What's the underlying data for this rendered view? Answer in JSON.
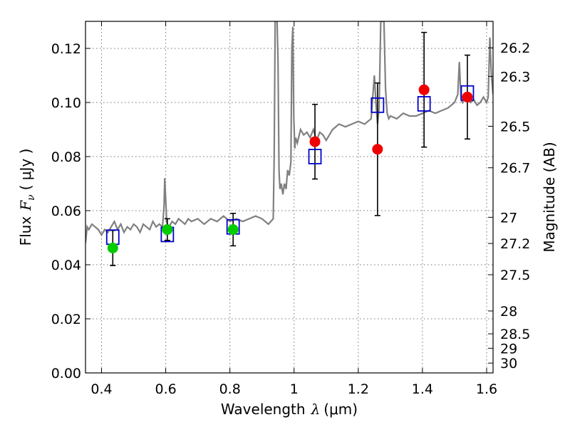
{
  "chart_data": {
    "type": "scatter",
    "xlabel_prefix": "Wavelength",
    "xlabel_symbol": "λ",
    "xlabel_unit": "(μm)",
    "ylabel_prefix": "Flux",
    "ylabel_symbol": "F",
    "ylabel_subscript": "ν",
    "ylabel_unit": "( μJy )",
    "y2label": "Magnitude (AB)",
    "xlim": [
      0.35,
      1.62
    ],
    "ylim": [
      0.0,
      0.13
    ],
    "x_ticks": [
      0.4,
      0.6,
      0.8,
      1.0,
      1.2,
      1.4,
      1.6
    ],
    "x_tick_labels": [
      "0.4",
      "0.6",
      "0.8",
      "1",
      "1.2",
      "1.4",
      "1.6"
    ],
    "y_ticks": [
      0.0,
      0.02,
      0.04,
      0.06,
      0.08,
      0.1,
      0.12
    ],
    "y_tick_labels": [
      "0.00",
      "0.02",
      "0.04",
      "0.06",
      "0.08",
      "0.10",
      "0.12"
    ],
    "y2_ticks": [
      {
        "label": "26.2",
        "mag": 26.2
      },
      {
        "label": "26.3",
        "mag": 26.3
      },
      {
        "label": "26.5",
        "mag": 26.5
      },
      {
        "label": "26.7",
        "mag": 26.7
      },
      {
        "label": "27",
        "mag": 27.0
      },
      {
        "label": "27.2",
        "mag": 27.2
      },
      {
        "label": "27.5",
        "mag": 27.5
      },
      {
        "label": "28",
        "mag": 28.0
      },
      {
        "label": "28.5",
        "mag": 28.5
      },
      {
        "label": "29",
        "mag": 29.0
      },
      {
        "label": "30",
        "mag": 30.0
      }
    ],
    "grid": true,
    "colors": {
      "sed": "#808080",
      "model": "#0000cc",
      "obs_optical": "#00cc00",
      "obs_nir": "#ee0000",
      "errorbar": "#000000"
    },
    "sed_model": {
      "x": [
        0.35,
        0.355,
        0.36,
        0.37,
        0.38,
        0.39,
        0.4,
        0.41,
        0.42,
        0.43,
        0.44,
        0.45,
        0.46,
        0.47,
        0.48,
        0.49,
        0.5,
        0.51,
        0.52,
        0.53,
        0.54,
        0.55,
        0.56,
        0.57,
        0.58,
        0.59,
        0.595,
        0.597,
        0.6,
        0.603,
        0.605,
        0.61,
        0.62,
        0.63,
        0.64,
        0.65,
        0.66,
        0.67,
        0.68,
        0.7,
        0.72,
        0.74,
        0.76,
        0.78,
        0.8,
        0.82,
        0.84,
        0.86,
        0.88,
        0.9,
        0.92,
        0.935,
        0.938,
        0.941,
        0.944,
        0.947,
        0.95,
        0.953,
        0.956,
        0.96,
        0.965,
        0.97,
        0.975,
        0.98,
        0.985,
        0.99,
        0.993,
        0.996,
        0.999,
        1.002,
        1.005,
        1.01,
        1.02,
        1.03,
        1.04,
        1.05,
        1.06,
        1.07,
        1.08,
        1.09,
        1.1,
        1.12,
        1.14,
        1.16,
        1.18,
        1.2,
        1.22,
        1.24,
        1.25,
        1.255,
        1.26,
        1.265,
        1.27,
        1.275,
        1.28,
        1.285,
        1.29,
        1.295,
        1.3,
        1.32,
        1.34,
        1.36,
        1.38,
        1.4,
        1.42,
        1.44,
        1.46,
        1.48,
        1.5,
        1.51,
        1.515,
        1.52,
        1.525,
        1.53,
        1.54,
        1.55,
        1.56,
        1.57,
        1.58,
        1.59,
        1.6,
        1.605,
        1.61,
        1.615,
        1.62
      ],
      "y": [
        0.048,
        0.054,
        0.053,
        0.055,
        0.054,
        0.053,
        0.051,
        0.053,
        0.052,
        0.054,
        0.056,
        0.053,
        0.055,
        0.052,
        0.054,
        0.053,
        0.055,
        0.054,
        0.052,
        0.055,
        0.054,
        0.053,
        0.056,
        0.054,
        0.055,
        0.054,
        0.062,
        0.072,
        0.064,
        0.056,
        0.055,
        0.054,
        0.056,
        0.055,
        0.057,
        0.056,
        0.055,
        0.057,
        0.056,
        0.057,
        0.055,
        0.057,
        0.056,
        0.058,
        0.056,
        0.057,
        0.056,
        0.057,
        0.058,
        0.057,
        0.055,
        0.057,
        0.08,
        0.13,
        0.13,
        0.13,
        0.115,
        0.075,
        0.068,
        0.07,
        0.066,
        0.07,
        0.068,
        0.075,
        0.073,
        0.078,
        0.12,
        0.128,
        0.095,
        0.083,
        0.087,
        0.085,
        0.09,
        0.088,
        0.089,
        0.087,
        0.09,
        0.086,
        0.089,
        0.088,
        0.086,
        0.09,
        0.092,
        0.091,
        0.092,
        0.093,
        0.092,
        0.094,
        0.11,
        0.1,
        0.092,
        0.098,
        0.13,
        0.13,
        0.13,
        0.105,
        0.096,
        0.094,
        0.095,
        0.094,
        0.096,
        0.095,
        0.095,
        0.096,
        0.097,
        0.096,
        0.097,
        0.098,
        0.1,
        0.103,
        0.115,
        0.101,
        0.1,
        0.102,
        0.101,
        0.1,
        0.101,
        0.099,
        0.1,
        0.102,
        0.1,
        0.102,
        0.124,
        0.11,
        0.103
      ]
    },
    "model_points": {
      "x": [
        0.435,
        0.605,
        0.81,
        1.065,
        1.26,
        1.405,
        1.54
      ],
      "y": [
        0.0502,
        0.0512,
        0.054,
        0.08,
        0.099,
        0.0995,
        0.1035
      ]
    },
    "observed_optical": {
      "x": [
        0.435,
        0.605,
        0.81
      ],
      "y": [
        0.0462,
        0.053,
        0.053
      ],
      "yerr": [
        0.0065,
        0.004,
        0.006
      ]
    },
    "observed_nir": {
      "x": [
        1.065,
        1.26,
        1.405,
        1.54
      ],
      "y": [
        0.0855,
        0.0827,
        0.1047,
        0.102
      ],
      "yerr": [
        0.0138,
        0.0245,
        0.0212,
        0.0155
      ]
    }
  }
}
